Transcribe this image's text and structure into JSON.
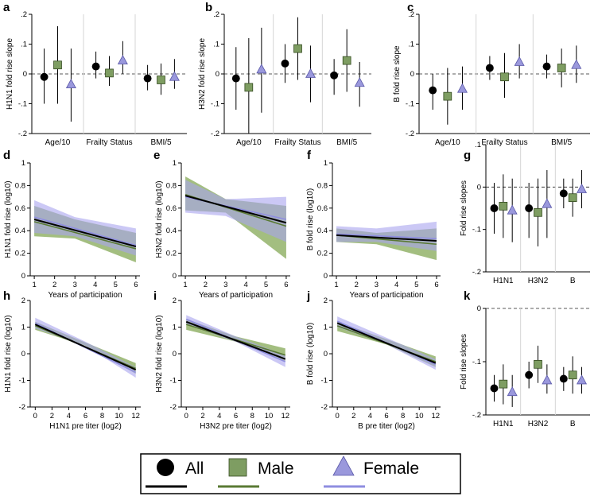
{
  "colors": {
    "all": "#000000",
    "male": "#5a7a34",
    "male_marker": "#7e9d62",
    "female": "#8f8ee0",
    "female_marker": "#9a98dc",
    "ci_male": "#8cae60",
    "ci_female": "#a9a4ef",
    "ci_all": "#b9b3dd"
  },
  "legend": {
    "items": [
      {
        "label": "All",
        "marker": "circle",
        "line_color": "#000000"
      },
      {
        "label": "Male",
        "marker": "square",
        "line_color": "#5a7a34"
      },
      {
        "label": "Female",
        "marker": "triangle",
        "line_color": "#8f8ee0"
      }
    ]
  },
  "chart_data": [
    {
      "id": "a",
      "panel_label": "a",
      "type": "scatter",
      "subtype": "dot-whisker",
      "ylabel": "H1N1 fold rise slope",
      "ylim": [
        -0.2,
        0.2
      ],
      "yticks": [
        ".2",
        ".1",
        "0",
        "-.1",
        "-.2"
      ],
      "yticks_num": [
        0.2,
        0.1,
        0,
        -0.1,
        -0.2
      ],
      "categories": [
        "Age/10",
        "Frailty Status",
        "BMI/5"
      ],
      "series": [
        {
          "name": "All",
          "values": [
            -0.01,
            0.025,
            -0.015
          ],
          "ci_low": [
            -0.1,
            -0.015,
            -0.055
          ],
          "ci_high": [
            0.085,
            0.075,
            0.03
          ]
        },
        {
          "name": "Male",
          "values": [
            0.03,
            0.003,
            -0.02
          ],
          "ci_low": [
            -0.1,
            -0.04,
            -0.07
          ],
          "ci_high": [
            0.16,
            0.06,
            0.035
          ]
        },
        {
          "name": "Female",
          "values": [
            -0.035,
            0.045,
            -0.01
          ],
          "ci_low": [
            -0.16,
            0,
            -0.05
          ],
          "ci_high": [
            0.085,
            0.11,
            0.05
          ]
        }
      ]
    },
    {
      "id": "b",
      "panel_label": "b",
      "type": "scatter",
      "subtype": "dot-whisker",
      "ylabel": "H3N2 fold rise slope",
      "ylim": [
        -0.2,
        0.2
      ],
      "yticks": [
        ".2",
        ".1",
        "0",
        "-.1",
        "-.2"
      ],
      "yticks_num": [
        0.2,
        0.1,
        0,
        -0.1,
        -0.2
      ],
      "categories": [
        "Age/10",
        "Frailty Status",
        "BMI/5"
      ],
      "series": [
        {
          "name": "All",
          "values": [
            -0.015,
            0.035,
            -0.005
          ],
          "ci_low": [
            -0.12,
            -0.03,
            -0.07
          ],
          "ci_high": [
            0.09,
            0.1,
            0.05
          ]
        },
        {
          "name": "Male",
          "values": [
            -0.045,
            0.085,
            0.045
          ],
          "ci_low": [
            -0.2,
            -0.02,
            -0.06
          ],
          "ci_high": [
            0.12,
            0.19,
            0.15
          ]
        },
        {
          "name": "Female",
          "values": [
            0.015,
            0.0,
            -0.03
          ],
          "ci_low": [
            -0.13,
            -0.095,
            -0.11
          ],
          "ci_high": [
            0.155,
            0.095,
            0.04
          ]
        }
      ]
    },
    {
      "id": "c",
      "panel_label": "c",
      "type": "scatter",
      "subtype": "dot-whisker",
      "ylabel": "B fold rise slope",
      "ylim": [
        -0.2,
        0.2
      ],
      "yticks": [
        ".2",
        ".1",
        "0",
        "-.1",
        "-.2"
      ],
      "yticks_num": [
        0.2,
        0.1,
        0,
        -0.1,
        -0.2
      ],
      "categories": [
        "Age/10",
        "Frailty Status",
        "BMI/5"
      ],
      "series": [
        {
          "name": "All",
          "values": [
            -0.055,
            0.02,
            0.025
          ],
          "ci_low": [
            -0.12,
            -0.02,
            -0.015
          ],
          "ci_high": [
            0.0,
            0.06,
            0.065
          ]
        },
        {
          "name": "Male",
          "values": [
            -0.075,
            -0.01,
            0.02
          ],
          "ci_low": [
            -0.17,
            -0.08,
            -0.045
          ],
          "ci_high": [
            0.02,
            0.07,
            0.085
          ]
        },
        {
          "name": "Female",
          "values": [
            -0.05,
            0.04,
            0.03
          ],
          "ci_low": [
            -0.12,
            -0.015,
            -0.03
          ],
          "ci_high": [
            0.025,
            0.1,
            0.095
          ]
        }
      ]
    },
    {
      "id": "d",
      "panel_label": "d",
      "type": "line",
      "ylabel": "H1N1 fold rise (log10)",
      "xlabel": "Years of participation",
      "xlim": [
        0.8,
        6.2
      ],
      "ylim": [
        0,
        1.0
      ],
      "xticks": [
        1,
        2,
        3,
        4,
        5,
        6
      ],
      "yticks": [
        0,
        0.2,
        0.4,
        0.6,
        0.8,
        1.0
      ],
      "series": [
        {
          "name": "All",
          "x": [
            1,
            6
          ],
          "y": [
            0.5,
            0.26
          ]
        },
        {
          "name": "Male",
          "x": [
            1,
            6
          ],
          "y": [
            0.48,
            0.24
          ]
        },
        {
          "name": "Female",
          "x": [
            1,
            6
          ],
          "y": [
            0.52,
            0.27
          ]
        }
      ],
      "bands": [
        {
          "name": "Male",
          "x": [
            1,
            3,
            6
          ],
          "low": [
            0.35,
            0.33,
            0.12
          ],
          "high": [
            0.62,
            0.5,
            0.38
          ]
        },
        {
          "name": "Female",
          "x": [
            1,
            3,
            6
          ],
          "low": [
            0.38,
            0.35,
            0.18
          ],
          "high": [
            0.67,
            0.52,
            0.42
          ]
        }
      ]
    },
    {
      "id": "e",
      "panel_label": "e",
      "type": "line",
      "ylabel": "H3N2 fold rise (log10)",
      "xlabel": "Years of participation",
      "xlim": [
        0.8,
        6.2
      ],
      "ylim": [
        0,
        1.0
      ],
      "xticks": [
        1,
        2,
        3,
        4,
        5,
        6
      ],
      "yticks": [
        0,
        0.2,
        0.4,
        0.6,
        0.8,
        1.0
      ],
      "series": [
        {
          "name": "All",
          "x": [
            1,
            6
          ],
          "y": [
            0.71,
            0.47
          ]
        },
        {
          "name": "Male",
          "x": [
            1,
            6
          ],
          "y": [
            0.72,
            0.44
          ]
        },
        {
          "name": "Female",
          "x": [
            1,
            6
          ],
          "y": [
            0.7,
            0.5
          ]
        }
      ],
      "bands": [
        {
          "name": "Male",
          "x": [
            1,
            3,
            6
          ],
          "low": [
            0.58,
            0.56,
            0.15
          ],
          "high": [
            0.88,
            0.68,
            0.62
          ]
        },
        {
          "name": "Female",
          "x": [
            1,
            3,
            6
          ],
          "low": [
            0.56,
            0.53,
            0.3
          ],
          "high": [
            0.85,
            0.68,
            0.7
          ]
        }
      ]
    },
    {
      "id": "f",
      "panel_label": "f",
      "type": "line",
      "ylabel": "B fold rise (log10)",
      "xlabel": "Years of participation",
      "xlim": [
        0.8,
        6.2
      ],
      "ylim": [
        0,
        1.0
      ],
      "xticks": [
        1,
        2,
        3,
        4,
        5,
        6
      ],
      "yticks": [
        0,
        0.2,
        0.4,
        0.6,
        0.8,
        1.0
      ],
      "series": [
        {
          "name": "All",
          "x": [
            1,
            6
          ],
          "y": [
            0.36,
            0.31
          ]
        },
        {
          "name": "Male",
          "x": [
            1,
            6
          ],
          "y": [
            0.36,
            0.28
          ]
        },
        {
          "name": "Female",
          "x": [
            1,
            6
          ],
          "y": [
            0.37,
            0.33
          ]
        }
      ],
      "bands": [
        {
          "name": "Male",
          "x": [
            1,
            3,
            6
          ],
          "low": [
            0.3,
            0.28,
            0.14
          ],
          "high": [
            0.42,
            0.38,
            0.42
          ]
        },
        {
          "name": "Female",
          "x": [
            1,
            3,
            6
          ],
          "low": [
            0.3,
            0.3,
            0.22
          ],
          "high": [
            0.44,
            0.42,
            0.48
          ]
        }
      ]
    },
    {
      "id": "g",
      "panel_label": "g",
      "type": "scatter",
      "subtype": "dot-whisker",
      "ylabel": "Fold rise slopes",
      "ylim": [
        -0.2,
        0.1
      ],
      "yticks": [
        ".1",
        "0",
        "-.1",
        "-.2"
      ],
      "yticks_num": [
        0.1,
        0,
        -0.1,
        -0.2
      ],
      "categories": [
        "H1N1",
        "H3N2",
        "B"
      ],
      "series": [
        {
          "name": "All",
          "values": [
            -0.05,
            -0.05,
            -0.015
          ],
          "ci_low": [
            -0.11,
            -0.12,
            -0.05
          ],
          "ci_high": [
            0.01,
            0.01,
            0.02
          ]
        },
        {
          "name": "Male",
          "values": [
            -0.045,
            -0.06,
            -0.025
          ],
          "ci_low": [
            -0.12,
            -0.14,
            -0.07
          ],
          "ci_high": [
            0.03,
            0.02,
            0.02
          ]
        },
        {
          "name": "Female",
          "values": [
            -0.055,
            -0.04,
            -0.005
          ],
          "ci_low": [
            -0.13,
            -0.12,
            -0.05
          ],
          "ci_high": [
            0.02,
            0.04,
            0.04
          ]
        }
      ]
    },
    {
      "id": "h",
      "panel_label": "h",
      "type": "line",
      "ylabel": "H1N1 fold rise (log10)",
      "xlabel": "H1N1 pre titer (log2)",
      "xlim": [
        -0.6,
        12.6
      ],
      "ylim": [
        -2,
        2
      ],
      "xticks": [
        0,
        2,
        4,
        6,
        8,
        10,
        12
      ],
      "yticks": [
        -2,
        -1,
        0,
        1,
        2
      ],
      "series": [
        {
          "name": "All",
          "x": [
            0,
            12
          ],
          "y": [
            1.1,
            -0.6
          ]
        },
        {
          "name": "Male",
          "x": [
            0,
            12
          ],
          "y": [
            1.05,
            -0.55
          ]
        },
        {
          "name": "Female",
          "x": [
            0,
            12
          ],
          "y": [
            1.15,
            -0.7
          ]
        }
      ],
      "bands": [
        {
          "name": "Male",
          "x": [
            0,
            6,
            12
          ],
          "low": [
            0.9,
            0.3,
            -0.75
          ],
          "high": [
            1.2,
            0.42,
            -0.35
          ]
        },
        {
          "name": "Female",
          "x": [
            0,
            6,
            12
          ],
          "low": [
            0.95,
            0.3,
            -0.9
          ],
          "high": [
            1.35,
            0.45,
            -0.5
          ]
        }
      ]
    },
    {
      "id": "i",
      "panel_label": "i",
      "type": "line",
      "ylabel": "H3N2 fold rise (log10)",
      "xlabel": "H3N2 pre titer (log2)",
      "xlim": [
        -0.6,
        12.6
      ],
      "ylim": [
        -2,
        2
      ],
      "xticks": [
        0,
        2,
        4,
        6,
        8,
        10,
        12
      ],
      "yticks": [
        -2,
        -1,
        0,
        1,
        2
      ],
      "series": [
        {
          "name": "All",
          "x": [
            0,
            12
          ],
          "y": [
            1.2,
            -0.2
          ]
        },
        {
          "name": "Male",
          "x": [
            0,
            12
          ],
          "y": [
            1.1,
            -0.05
          ]
        },
        {
          "name": "Female",
          "x": [
            0,
            12
          ],
          "y": [
            1.3,
            -0.3
          ]
        }
      ],
      "bands": [
        {
          "name": "Male",
          "x": [
            0,
            6,
            12
          ],
          "low": [
            0.9,
            0.45,
            -0.3
          ],
          "high": [
            1.3,
            0.65,
            0.2
          ]
        },
        {
          "name": "Female",
          "x": [
            0,
            6,
            12
          ],
          "low": [
            1.1,
            0.45,
            -0.5
          ],
          "high": [
            1.45,
            0.65,
            -0.05
          ]
        }
      ]
    },
    {
      "id": "j",
      "panel_label": "j",
      "type": "line",
      "ylabel": "B fold rise (log10)",
      "xlabel": "B pre titer (log2)",
      "xlim": [
        -0.6,
        12.6
      ],
      "ylim": [
        -2,
        2
      ],
      "xticks": [
        0,
        2,
        4,
        6,
        8,
        10,
        12
      ],
      "yticks": [
        -2,
        -1,
        0,
        1,
        2
      ],
      "series": [
        {
          "name": "All",
          "x": [
            0,
            12
          ],
          "y": [
            1.15,
            -0.35
          ]
        },
        {
          "name": "Male",
          "x": [
            0,
            12
          ],
          "y": [
            1.05,
            -0.3
          ]
        },
        {
          "name": "Female",
          "x": [
            0,
            12
          ],
          "y": [
            1.22,
            -0.4
          ]
        }
      ],
      "bands": [
        {
          "name": "Male",
          "x": [
            0,
            6,
            12
          ],
          "low": [
            0.85,
            0.35,
            -0.5
          ],
          "high": [
            1.2,
            0.55,
            -0.1
          ]
        },
        {
          "name": "Female",
          "x": [
            0,
            6,
            12
          ],
          "low": [
            1.0,
            0.35,
            -0.6
          ],
          "high": [
            1.4,
            0.6,
            -0.2
          ]
        }
      ]
    },
    {
      "id": "k",
      "panel_label": "k",
      "type": "scatter",
      "subtype": "dot-whisker",
      "ylabel": "Fold rise slopes",
      "ylim": [
        -0.2,
        0
      ],
      "yticks": [
        "0",
        "-.1",
        "-.2"
      ],
      "yticks_num": [
        0,
        -0.1,
        -0.2
      ],
      "categories": [
        "H1N1",
        "H3N2",
        "B"
      ],
      "series": [
        {
          "name": "All",
          "values": [
            -0.15,
            -0.125,
            -0.132
          ],
          "ci_low": [
            -0.175,
            -0.15,
            -0.155
          ],
          "ci_high": [
            -0.125,
            -0.1,
            -0.11
          ]
        },
        {
          "name": "Male",
          "values": [
            -0.142,
            -0.105,
            -0.125
          ],
          "ci_low": [
            -0.18,
            -0.14,
            -0.16
          ],
          "ci_high": [
            -0.105,
            -0.07,
            -0.09
          ]
        },
        {
          "name": "Female",
          "values": [
            -0.157,
            -0.135,
            -0.135
          ],
          "ci_low": [
            -0.185,
            -0.16,
            -0.16
          ],
          "ci_high": [
            -0.125,
            -0.105,
            -0.11
          ]
        }
      ]
    }
  ]
}
